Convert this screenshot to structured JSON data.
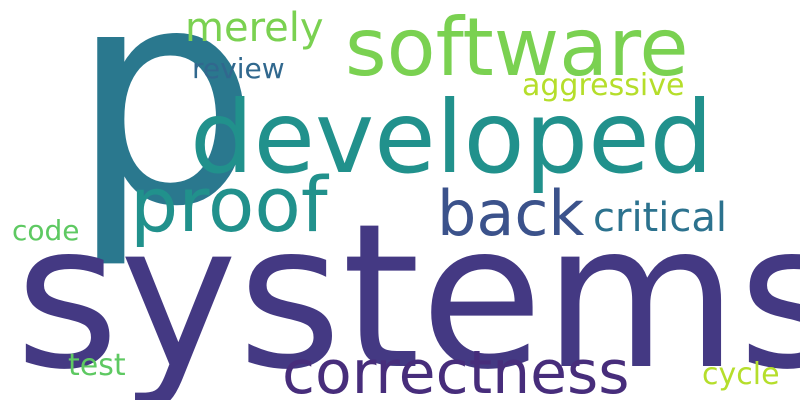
{
  "word_cloud": {
    "words": [
      {
        "id": "p",
        "text": "p",
        "color": "#2a788e"
      },
      {
        "id": "developed",
        "text": "developed",
        "color": "#21918c"
      },
      {
        "id": "software",
        "text": "software",
        "color": "#7ad151"
      },
      {
        "id": "systems",
        "text": "systems",
        "color": "#443983"
      },
      {
        "id": "proof",
        "text": "proof",
        "color": "#21918c"
      },
      {
        "id": "back",
        "text": "back",
        "color": "#3b528b"
      },
      {
        "id": "critical",
        "text": "critical",
        "color": "#2c728e"
      },
      {
        "id": "correctness",
        "text": "correctness",
        "color": "#472d7b"
      },
      {
        "id": "merely",
        "text": "merely",
        "color": "#7ad151"
      },
      {
        "id": "review",
        "text": "review",
        "color": "#31688e"
      },
      {
        "id": "aggressive",
        "text": "aggressive",
        "color": "#b5de2b"
      },
      {
        "id": "code",
        "text": "code",
        "color": "#5ec962"
      },
      {
        "id": "test",
        "text": "test",
        "color": "#5ec962"
      },
      {
        "id": "cycle",
        "text": "cycle",
        "color": "#b5de2b"
      }
    ]
  }
}
